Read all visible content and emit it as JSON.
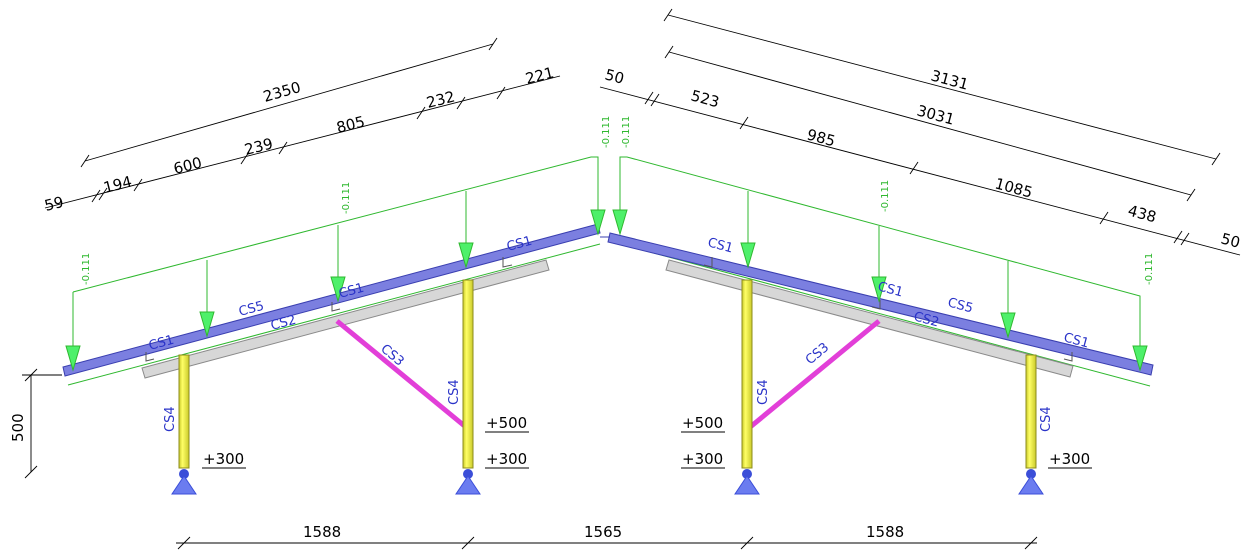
{
  "colors": {
    "rafter": "#7b7fe0",
    "rafter_edge": "#3a3fb0",
    "purlin_beam": "#d7d7d7",
    "column": "#f2f23a",
    "brace": "#e23fd8",
    "load_green": "#2fb82f",
    "arrow_green": "#4ef06a",
    "support_blue": "#5b6fe8",
    "label_blue": "#2a33c8"
  },
  "dimensions": {
    "left_top_total": "2350",
    "left_segments": [
      "59",
      "194",
      "600",
      "239",
      "805",
      "232",
      "221"
    ],
    "right_top_total": "3131",
    "right_mid_total": "3031",
    "right_segments": [
      "50",
      "523",
      "985",
      "1085",
      "438",
      "50"
    ],
    "bottom": [
      "1588",
      "1565",
      "1588"
    ],
    "height": "500"
  },
  "loads": {
    "value": "-0.111",
    "ridge_left": "-0.111",
    "ridge_right": "-0.111"
  },
  "sections": {
    "cs1": "CS1",
    "cs2": "CS2",
    "cs3": "CS3",
    "cs4": "CS4",
    "cs5": "CS5"
  },
  "levels": {
    "plus300": "+300",
    "plus500": "+500"
  },
  "icons": [
    "pinned-support-icon",
    "load-arrow-icon",
    "dimension-tick-icon"
  ]
}
